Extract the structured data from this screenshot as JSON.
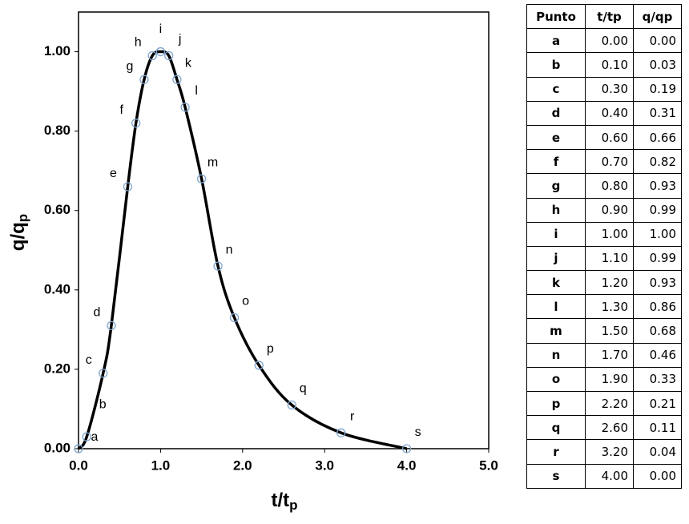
{
  "chart_data": {
    "type": "line",
    "x_label": {
      "main": "t/t",
      "sub": "p"
    },
    "y_label": {
      "main": "q/q",
      "sub": "p"
    },
    "x": [
      0.0,
      0.1,
      0.3,
      0.4,
      0.6,
      0.7,
      0.8,
      0.9,
      1.0,
      1.1,
      1.2,
      1.3,
      1.5,
      1.7,
      1.9,
      2.2,
      2.6,
      3.2,
      4.0
    ],
    "point_labels": [
      "a",
      "b",
      "c",
      "d",
      "e",
      "f",
      "g",
      "h",
      "i",
      "j",
      "k",
      "l",
      "m",
      "n",
      "o",
      "p",
      "q",
      "r",
      "s"
    ],
    "series": [
      {
        "color": "#000000",
        "marker_color": "#7fa6d0",
        "values": [
          0.0,
          0.03,
          0.19,
          0.31,
          0.66,
          0.82,
          0.93,
          0.99,
          1.0,
          0.99,
          0.93,
          0.86,
          0.68,
          0.46,
          0.33,
          0.21,
          0.11,
          0.04,
          0.0
        ]
      }
    ],
    "xlim": [
      0,
      5
    ],
    "ylim": [
      0,
      1.1
    ],
    "xticks": [
      {
        "value": 0,
        "label": "0.0"
      },
      {
        "value": 1,
        "label": "1.0"
      },
      {
        "value": 2,
        "label": "2.0"
      },
      {
        "value": 3,
        "label": "3.0"
      },
      {
        "value": 4,
        "label": "4.0"
      },
      {
        "value": 5,
        "label": "5.0"
      }
    ],
    "yticks": [
      {
        "value": 0,
        "label": "0.00"
      },
      {
        "value": 0.2,
        "label": "0.20"
      },
      {
        "value": 0.4,
        "label": "0.40"
      },
      {
        "value": 0.6,
        "label": "0.60"
      },
      {
        "value": 0.8,
        "label": "0.80"
      },
      {
        "value": 1,
        "label": "1.00"
      }
    ],
    "grid": false
  },
  "table": {
    "header": [
      "Punto",
      "t/tp",
      "q/qp"
    ],
    "rows": [
      [
        "a",
        "0.00",
        "0.00"
      ],
      [
        "b",
        "0.10",
        "0.03"
      ],
      [
        "c",
        "0.30",
        "0.19"
      ],
      [
        "d",
        "0.40",
        "0.31"
      ],
      [
        "e",
        "0.60",
        "0.66"
      ],
      [
        "f",
        "0.70",
        "0.82"
      ],
      [
        "g",
        "0.80",
        "0.93"
      ],
      [
        "h",
        "0.90",
        "0.99"
      ],
      [
        "i",
        "1.00",
        "1.00"
      ],
      [
        "j",
        "1.10",
        "0.99"
      ],
      [
        "k",
        "1.20",
        "0.93"
      ],
      [
        "l",
        "1.30",
        "0.86"
      ],
      [
        "m",
        "1.50",
        "0.68"
      ],
      [
        "n",
        "1.70",
        "0.46"
      ],
      [
        "o",
        "1.90",
        "0.33"
      ],
      [
        "p",
        "2.20",
        "0.21"
      ],
      [
        "q",
        "2.60",
        "0.11"
      ],
      [
        "r",
        "3.20",
        "0.04"
      ],
      [
        "s",
        "4.00",
        "0.00"
      ]
    ]
  }
}
